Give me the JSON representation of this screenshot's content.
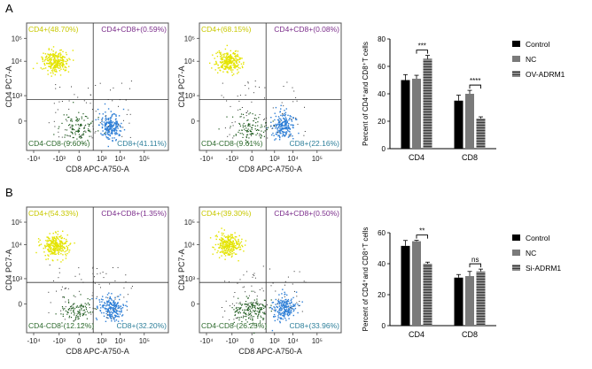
{
  "panels": [
    {
      "label": "A",
      "flow_plots": [
        {
          "q_ul": "CD4+(48.70%)",
          "q_ur": "CD4+CD8+(0.59%)",
          "q_ll": "CD4-CD8-(9.60%)",
          "q_lr": "CD8+(41.11%)"
        },
        {
          "q_ul": "CD4+(68.15%)",
          "q_ur": "CD4+CD8+(0.08%)",
          "q_ll": "CD4-CD8-(9.61%)",
          "q_lr": "CD8+(22.16%)"
        }
      ]
    },
    {
      "label": "B",
      "flow_plots": [
        {
          "q_ul": "CD4+(54.33%)",
          "q_ur": "CD4+CD8+(1.35%)",
          "q_ll": "CD4-CD8-(12.12%)",
          "q_lr": "CD8+(32.20%)"
        },
        {
          "q_ul": "CD4+(39.30%)",
          "q_ur": "CD4+CD8+(0.50%)",
          "q_ll": "CD4-CD8-(26.25%)",
          "q_lr": "CD8+(33.96%)"
        }
      ]
    }
  ],
  "flow_axes": {
    "xlabel": "CD8 APC-A750-A",
    "ylabel": "CD4 PC7-A",
    "xticks": [
      "-10⁴",
      "-10³",
      "0",
      "10³",
      "10⁴",
      "10⁵"
    ],
    "yticks": [
      "10⁵",
      "10⁴",
      "10³",
      "0"
    ]
  },
  "colors": {
    "cd4_population": "#e4e400",
    "cd8_population": "#2f7fd6",
    "double_negative": "#1e5a1e",
    "label_cd4": "#c8c800",
    "label_double_positive": "#7b2d8b",
    "label_cd4cd8_neg": "#2e6b2e",
    "label_cd8": "#2d7f9a"
  },
  "chart_data": [
    {
      "type": "bar",
      "ylabel": "Percent of CD4⁺and CD8⁺T cells",
      "ylim": [
        0,
        80
      ],
      "yticks": [
        "0",
        "20",
        "40",
        "60",
        "80"
      ],
      "categories": [
        "CD4",
        "CD8"
      ],
      "series": [
        {
          "name": "Control",
          "values": [
            50,
            35
          ],
          "errors": [
            4,
            4
          ],
          "color": "#000000",
          "pattern": "solid"
        },
        {
          "name": "NC",
          "values": [
            51,
            40
          ],
          "errors": [
            2.5,
            2.5
          ],
          "color": "#7a7a7a",
          "pattern": "solid"
        },
        {
          "name": "OV-ADRM1",
          "values": [
            65.5,
            22
          ],
          "errors": [
            2.5,
            1.2
          ],
          "color": "#7a7a7a",
          "pattern": "stripe"
        }
      ],
      "annotations": [
        {
          "category": "CD4",
          "between": [
            "NC",
            "OV-ADRM1"
          ],
          "text": "***"
        },
        {
          "category": "CD8",
          "between": [
            "NC",
            "OV-ADRM1"
          ],
          "text": "****"
        }
      ],
      "legend": "right"
    },
    {
      "type": "bar",
      "ylabel": "Percent of CD4⁺and CD8⁺T cells",
      "ylim": [
        0,
        60
      ],
      "yticks": [
        "0",
        "20",
        "40",
        "60"
      ],
      "categories": [
        "CD4",
        "CD8"
      ],
      "series": [
        {
          "name": "Control",
          "values": [
            51.5,
            31
          ],
          "errors": [
            3.5,
            2
          ],
          "color": "#000000",
          "pattern": "solid"
        },
        {
          "name": "NC",
          "values": [
            54.5,
            32
          ],
          "errors": [
            0.6,
            3
          ],
          "color": "#7a7a7a",
          "pattern": "solid"
        },
        {
          "name": "Si-ADRM1",
          "values": [
            40,
            35
          ],
          "errors": [
            1,
            1.5
          ],
          "color": "#7a7a7a",
          "pattern": "stripe"
        }
      ],
      "annotations": [
        {
          "category": "CD4",
          "between": [
            "NC",
            "Si-ADRM1"
          ],
          "text": "**"
        },
        {
          "category": "CD8",
          "between": [
            "NC",
            "Si-ADRM1"
          ],
          "text": "ns"
        }
      ],
      "legend": "right"
    }
  ]
}
